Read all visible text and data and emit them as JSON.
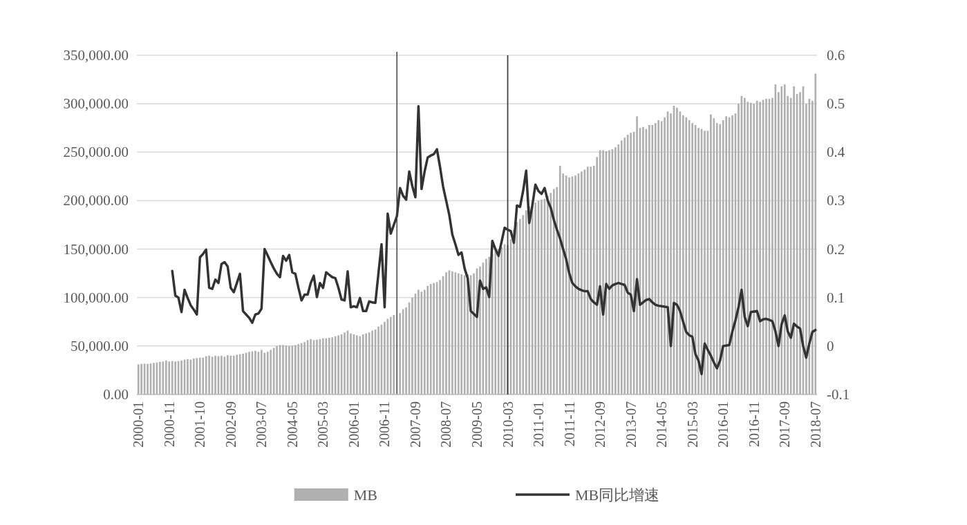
{
  "chart_data": {
    "type": "bar",
    "categories": [
      "2000-01",
      null,
      null,
      null,
      null,
      null,
      null,
      null,
      null,
      null,
      "2000-11",
      null,
      null,
      null,
      null,
      null,
      null,
      null,
      null,
      null,
      "2001-10",
      null,
      null,
      null,
      null,
      null,
      null,
      null,
      null,
      null,
      "2002-09",
      null,
      null,
      null,
      null,
      null,
      null,
      null,
      null,
      null,
      "2003-07",
      null,
      null,
      null,
      null,
      null,
      null,
      null,
      null,
      null,
      "2004-05",
      null,
      null,
      null,
      null,
      null,
      null,
      null,
      null,
      null,
      "2005-03",
      null,
      null,
      null,
      null,
      null,
      null,
      null,
      null,
      null,
      "2006-01",
      null,
      null,
      null,
      null,
      null,
      null,
      null,
      null,
      null,
      "2006-11",
      null,
      null,
      null,
      null,
      null,
      null,
      null,
      null,
      null,
      "2007-09",
      null,
      null,
      null,
      null,
      null,
      null,
      null,
      null,
      null,
      "2008-07",
      null,
      null,
      null,
      null,
      null,
      null,
      null,
      null,
      null,
      "2009-05",
      null,
      null,
      null,
      null,
      null,
      null,
      null,
      null,
      null,
      "2010-03",
      null,
      null,
      null,
      null,
      null,
      null,
      null,
      null,
      null,
      "2011-01",
      null,
      null,
      null,
      null,
      null,
      null,
      null,
      null,
      null,
      "2011-11",
      null,
      null,
      null,
      null,
      null,
      null,
      null,
      null,
      null,
      "2012-09",
      null,
      null,
      null,
      null,
      null,
      null,
      null,
      null,
      null,
      "2013-07",
      null,
      null,
      null,
      null,
      null,
      null,
      null,
      null,
      null,
      "2014-05",
      null,
      null,
      null,
      null,
      null,
      null,
      null,
      null,
      null,
      "2015-03",
      null,
      null,
      null,
      null,
      null,
      null,
      null,
      null,
      null,
      "2016-01",
      null,
      null,
      null,
      null,
      null,
      null,
      null,
      null,
      null,
      "2016-11",
      null,
      null,
      null,
      null,
      null,
      null,
      null,
      null,
      null,
      "2017-09",
      null,
      null,
      null,
      null,
      null,
      null,
      null,
      null,
      null,
      "2018-07"
    ],
    "series": [
      {
        "name": "MB",
        "color": "#b0b0b0",
        "values": [
          31000,
          31500,
          31800,
          31500,
          32000,
          32500,
          33000,
          33500,
          34000,
          35000,
          34000,
          34500,
          34000,
          34500,
          35000,
          36000,
          36500,
          36000,
          37000,
          37500,
          38000,
          38000,
          39500,
          40000,
          39000,
          40000,
          39500,
          40000,
          39000,
          40500,
          40000,
          40000,
          41000,
          41500,
          42000,
          43000,
          44000,
          44500,
          45000,
          44000,
          46000,
          43000,
          44000,
          46000,
          48000,
          50000,
          51000,
          51000,
          50500,
          50000,
          50500,
          51000,
          52000,
          53000,
          54000,
          56000,
          57000,
          56000,
          56500,
          57000,
          58000,
          58000,
          58500,
          59000,
          60000,
          61000,
          62000,
          64000,
          66000,
          63000,
          62000,
          61000,
          60000,
          62000,
          63000,
          64000,
          66000,
          67000,
          70000,
          72000,
          75000,
          78000,
          80000,
          82000,
          null,
          84000,
          88000,
          90000,
          95000,
          100000,
          104000,
          108000,
          106000,
          108000,
          112000,
          114000,
          115000,
          116000,
          118000,
          122000,
          126000,
          128000,
          127000,
          126000,
          125000,
          124000,
          123000,
          124000,
          123000,
          125000,
          130000,
          132000,
          136000,
          140000,
          142000,
          145000,
          148000,
          150000,
          152000,
          155000,
          154000,
          160000,
          170000,
          178000,
          181000,
          185000,
          190000,
          194000,
          198000,
          198000,
          200000,
          201000,
          202000,
          205000,
          208000,
          212000,
          214000,
          236000,
          228000,
          226000,
          224000,
          225000,
          226000,
          228000,
          230000,
          232000,
          235000,
          235000,
          236000,
          245000,
          252000,
          252000,
          251000,
          252000,
          253000,
          255000,
          258000,
          262000,
          265000,
          268000,
          270000,
          271000,
          287000,
          275000,
          276000,
          274000,
          278000,
          278000,
          280000,
          283000,
          282000,
          286000,
          292000,
          290000,
          298000,
          296000,
          292000,
          288000,
          286000,
          283000,
          280000,
          278000,
          275000,
          274000,
          272000,
          272000,
          289000,
          285000,
          280000,
          279000,
          283000,
          287000,
          286000,
          288000,
          290000,
          300000,
          308000,
          306000,
          302000,
          301000,
          300000,
          303000,
          302000,
          304000,
          305000,
          305000,
          306000,
          320000,
          312000,
          318000,
          320000,
          308000,
          306000,
          318000,
          310000,
          312000,
          318000,
          300000,
          305000,
          303000,
          331000
        ]
      },
      {
        "name": "MB同比增速",
        "type": "line",
        "axis": "y2",
        "color": "#333333",
        "values": [
          null,
          null,
          null,
          null,
          null,
          null,
          null,
          null,
          null,
          null,
          null,
          0.155,
          0.104,
          0.1,
          0.07,
          0.116,
          0.099,
          0.084,
          0.075,
          0.065,
          0.183,
          0.19,
          0.199,
          0.12,
          0.118,
          0.137,
          0.13,
          0.169,
          0.173,
          0.164,
          0.12,
          0.111,
          0.13,
          0.149,
          0.072,
          0.065,
          0.058,
          0.048,
          0.065,
          0.067,
          0.077,
          0.2,
          0.187,
          0.173,
          0.16,
          0.149,
          0.142,
          0.186,
          0.176,
          0.188,
          0.152,
          0.149,
          0.12,
          0.094,
          0.106,
          0.106,
          0.13,
          0.145,
          0.101,
          0.13,
          0.12,
          0.152,
          0.147,
          0.142,
          0.14,
          0.12,
          0.096,
          0.094,
          0.154,
          0.08,
          0.082,
          0.08,
          0.099,
          0.072,
          0.072,
          0.092,
          0.09,
          0.089,
          0.15,
          0.21,
          0.08,
          0.273,
          0.232,
          0.25,
          0.268,
          0.326,
          0.31,
          0.302,
          0.36,
          0.33,
          0.307,
          0.495,
          0.324,
          0.36,
          0.389,
          0.393,
          0.396,
          0.406,
          0.37,
          0.329,
          0.3,
          0.271,
          0.23,
          0.21,
          0.188,
          0.193,
          0.16,
          0.14,
          0.072,
          0.066,
          0.06,
          0.135,
          0.118,
          0.121,
          0.101,
          0.217,
          0.2,
          0.186,
          0.215,
          0.244,
          0.24,
          0.237,
          0.213,
          0.29,
          0.287,
          0.32,
          0.362,
          0.254,
          0.29,
          0.333,
          0.32,
          0.314,
          0.326,
          0.3,
          0.285,
          0.26,
          0.24,
          0.222,
          0.2,
          0.179,
          0.15,
          0.13,
          0.123,
          0.118,
          0.115,
          0.113,
          0.113,
          0.097,
          0.09,
          0.085,
          0.123,
          0.065,
          0.128,
          0.118,
          0.125,
          0.128,
          0.13,
          0.128,
          0.126,
          0.11,
          0.106,
          0.072,
          0.138,
          0.085,
          0.09,
          0.095,
          0.097,
          0.09,
          0.085,
          0.083,
          0.082,
          0.081,
          0.08,
          0.0,
          0.089,
          0.085,
          0.072,
          0.05,
          0.029,
          0.022,
          0.019,
          -0.017,
          -0.03,
          -0.058,
          0.005,
          -0.008,
          -0.02,
          -0.034,
          -0.046,
          -0.03,
          0.0,
          0.001,
          0.002,
          0.03,
          0.053,
          0.08,
          0.116,
          0.06,
          0.041,
          0.07,
          0.071,
          0.072,
          0.051,
          0.055,
          0.056,
          0.054,
          0.051,
          0.03,
          0.0,
          0.045,
          0.063,
          0.03,
          0.017,
          0.046,
          0.04,
          0.036,
          0.0,
          -0.024,
          0.005,
          0.029,
          0.033
        ]
      }
    ],
    "ylim": [
      0,
      350000
    ],
    "yticks": [
      {
        "value": 0,
        "label": "0.00"
      },
      {
        "value": 50000,
        "label": "50,000.00"
      },
      {
        "value": 100000,
        "label": "100,000.00"
      },
      {
        "value": 150000,
        "label": "150,000.00"
      },
      {
        "value": 200000,
        "label": "200,000.00"
      },
      {
        "value": 250000,
        "label": "250,000.00"
      },
      {
        "value": 300000,
        "label": "300,000.00"
      },
      {
        "value": 350000,
        "label": "350,000.00"
      }
    ],
    "y2lim": [
      -0.1,
      0.6
    ],
    "y2ticks": [
      -0.1,
      0,
      0.1,
      0.2,
      0.3,
      0.4,
      0.5,
      0.6
    ],
    "ref_lines": [
      {
        "axis": "x",
        "value": "2010-03",
        "color": "#404040"
      }
    ],
    "grid": "y",
    "legend": "bottom"
  }
}
